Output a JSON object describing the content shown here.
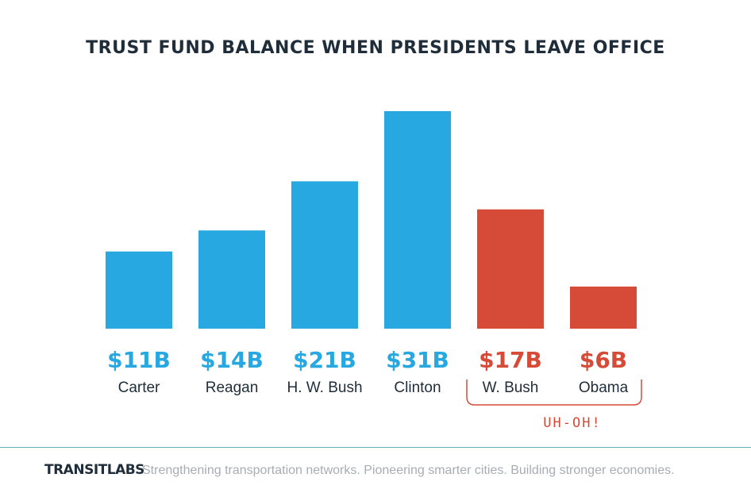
{
  "chart_data": {
    "type": "bar",
    "title": "TRUST FUND BALANCE WHEN PRESIDENTS LEAVE OFFICE",
    "categories": [
      "Carter",
      "Reagan",
      "H. W. Bush",
      "Clinton",
      "W. Bush",
      "Obama"
    ],
    "values": [
      11,
      14,
      21,
      31,
      17,
      6
    ],
    "value_labels": [
      "$11B",
      "$14B",
      "$21B",
      "$31B",
      "$17B",
      "$6B"
    ],
    "ylim": [
      0,
      31
    ],
    "bar_colors": [
      "#27a8e0",
      "#27a8e0",
      "#27a8e0",
      "#27a8e0",
      "#d64b38",
      "#d64b38"
    ],
    "annotation": "UH-OH!"
  },
  "footer": {
    "brand": "TRANSITLABS",
    "tagline": "Strengthening transportation networks. Pioneering smarter cities. Building stronger economies."
  },
  "colors": {
    "blue": "#27a8e0",
    "red": "#d64b38",
    "dark": "#1f2d3a"
  }
}
